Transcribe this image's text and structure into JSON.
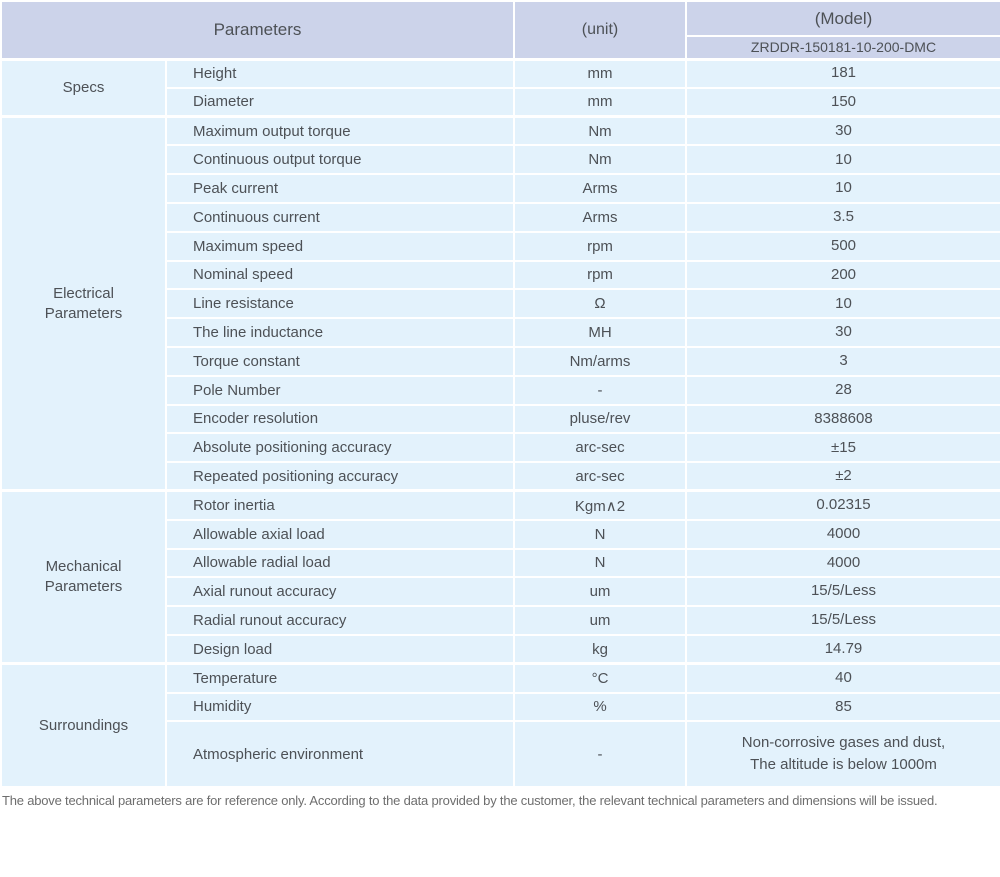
{
  "colors": {
    "header_bg": "#ccd3ea",
    "row_bg": "#e3f2fc",
    "border": "#ffffff",
    "text": "#4d5156",
    "footer_text": "#6e6e6e"
  },
  "table": {
    "header": {
      "parameters_label": "Parameters",
      "unit_label": "(unit)",
      "model_label": "(Model)",
      "model_value": "ZRDDR-150181-10-200-DMC"
    },
    "sections": [
      {
        "id": "specs",
        "name": "Specs",
        "rows": [
          {
            "parameter": "Height",
            "unit": "mm",
            "value": "181"
          },
          {
            "parameter": "Diameter",
            "unit": "mm",
            "value": "150"
          }
        ]
      },
      {
        "id": "electrical-parameters",
        "name": "Electrical\nParameters",
        "rows": [
          {
            "parameter": "Maximum output torque",
            "unit": "Nm",
            "value": "30"
          },
          {
            "parameter": "Continuous output torque",
            "unit": "Nm",
            "value": "10"
          },
          {
            "parameter": "Peak current",
            "unit": "Arms",
            "value": "10"
          },
          {
            "parameter": "Continuous current",
            "unit": "Arms",
            "value": "3.5"
          },
          {
            "parameter": "Maximum speed",
            "unit": "rpm",
            "value": "500"
          },
          {
            "parameter": "Nominal speed",
            "unit": "rpm",
            "value": "200"
          },
          {
            "parameter": "Line resistance",
            "unit": "Ω",
            "value": "10"
          },
          {
            "parameter": "The line inductance",
            "unit": "MH",
            "value": "30"
          },
          {
            "parameter": "Torque constant",
            "unit": "Nm/arms",
            "value": "3"
          },
          {
            "parameter": "Pole Number",
            "unit": "-",
            "value": "28"
          },
          {
            "parameter": "Encoder resolution",
            "unit": "pluse/rev",
            "value": "8388608"
          },
          {
            "parameter": "Absolute positioning accuracy",
            "unit": "arc-sec",
            "value": "±15"
          },
          {
            "parameter": "Repeated positioning accuracy",
            "unit": "arc-sec",
            "value": "±2"
          }
        ]
      },
      {
        "id": "mechanical-parameters",
        "name": "Mechanical\nParameters",
        "rows": [
          {
            "parameter": "Rotor inertia",
            "unit": "Kgm∧2",
            "value": "0.02315"
          },
          {
            "parameter": "Allowable axial load",
            "unit": "N",
            "value": "4000"
          },
          {
            "parameter": "Allowable radial load",
            "unit": "N",
            "value": "4000"
          },
          {
            "parameter": "Axial runout accuracy",
            "unit": "um",
            "value": "15/5/Less"
          },
          {
            "parameter": "Radial runout accuracy",
            "unit": "um",
            "value": "15/5/Less"
          },
          {
            "parameter": "Design load",
            "unit": "kg",
            "value": "14.79"
          }
        ]
      },
      {
        "id": "surroundings",
        "name": "Surroundings",
        "rows": [
          {
            "parameter": "Temperature",
            "unit": "°C",
            "value": "40"
          },
          {
            "parameter": "Humidity",
            "unit": "%",
            "value": "85"
          },
          {
            "parameter": "Atmospheric environment",
            "unit": "-",
            "value": "Non-corrosive gases and dust,\nThe altitude is below 1000m"
          }
        ]
      }
    ],
    "footer_note": "The above technical parameters are for reference only. According to the data provided by the customer, the relevant technical parameters and dimensions will be issued."
  }
}
